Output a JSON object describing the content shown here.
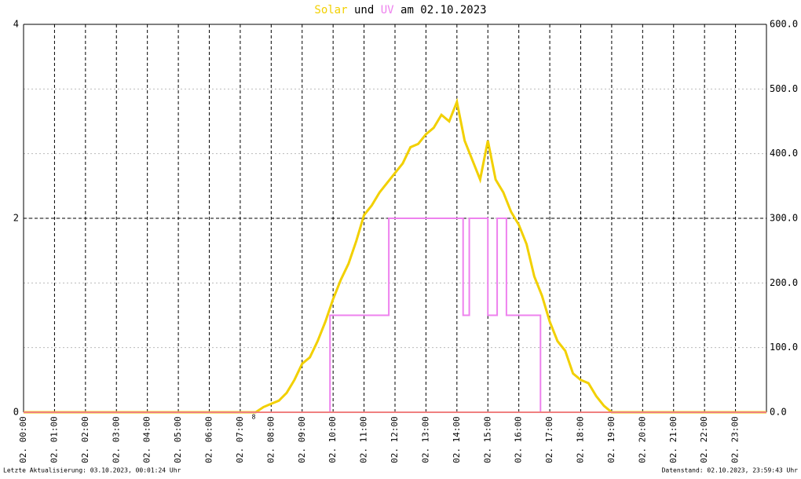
{
  "chart_data": {
    "type": "line",
    "title_words": [
      "und",
      "am 02.10.2023"
    ],
    "footer_left": "Letzte Aktualisierung: 03.10.2023, 00:01:24 Uhr",
    "footer_right": "Datenstand: 02.10.2023, 23:59:43 Uhr",
    "annotation": "8",
    "xlim": [
      0,
      24
    ],
    "xticks": [
      {
        "value": 0,
        "label": "02. 00:00"
      },
      {
        "value": 1,
        "label": "02. 01:00"
      },
      {
        "value": 2,
        "label": "02. 02:00"
      },
      {
        "value": 3,
        "label": "02. 03:00"
      },
      {
        "value": 4,
        "label": "02. 04:00"
      },
      {
        "value": 5,
        "label": "02. 05:00"
      },
      {
        "value": 6,
        "label": "02. 06:00"
      },
      {
        "value": 7,
        "label": "02. 07:00"
      },
      {
        "value": 8,
        "label": "02. 08:00"
      },
      {
        "value": 9,
        "label": "02. 09:00"
      },
      {
        "value": 10,
        "label": "02. 10:00"
      },
      {
        "value": 11,
        "label": "02. 11:00"
      },
      {
        "value": 12,
        "label": "02. 12:00"
      },
      {
        "value": 13,
        "label": "02. 13:00"
      },
      {
        "value": 14,
        "label": "02. 14:00"
      },
      {
        "value": 15,
        "label": "02. 15:00"
      },
      {
        "value": 16,
        "label": "02. 16:00"
      },
      {
        "value": 17,
        "label": "02. 17:00"
      },
      {
        "value": 18,
        "label": "02. 18:00"
      },
      {
        "value": 19,
        "label": "02. 19:00"
      },
      {
        "value": 20,
        "label": "02. 20:00"
      },
      {
        "value": 21,
        "label": "02. 21:00"
      },
      {
        "value": 22,
        "label": "02. 22:00"
      },
      {
        "value": 23,
        "label": "02. 23:00"
      }
    ],
    "ylim": [
      0,
      4
    ],
    "yticks": [
      0,
      2,
      4
    ],
    "y2lim": [
      0,
      600
    ],
    "y2ticks": [
      {
        "value": 0,
        "label": "0.0"
      },
      {
        "value": 100,
        "label": "100.0"
      },
      {
        "value": 200,
        "label": "200.0"
      },
      {
        "value": 300,
        "label": "300.0"
      },
      {
        "value": 400,
        "label": "400.0"
      },
      {
        "value": 500,
        "label": "500.0"
      },
      {
        "value": 600,
        "label": "600.0"
      }
    ],
    "grid": true,
    "series": [
      {
        "name": "Solar",
        "color": "#f2d000",
        "axis": "y2",
        "x": [
          0,
          7.5,
          7.75,
          8,
          8.25,
          8.5,
          8.75,
          9,
          9.25,
          9.5,
          9.75,
          10,
          10.25,
          10.5,
          10.75,
          11,
          11.25,
          11.5,
          11.75,
          12,
          12.25,
          12.5,
          12.75,
          13,
          13.25,
          13.5,
          13.75,
          14,
          14.25,
          14.5,
          14.75,
          15,
          15.25,
          15.5,
          15.75,
          16,
          16.25,
          16.5,
          16.75,
          17,
          17.25,
          17.5,
          17.75,
          18,
          18.25,
          18.5,
          18.75,
          19,
          24
        ],
        "values": [
          0,
          0,
          8,
          13,
          18,
          30,
          50,
          75,
          85,
          110,
          140,
          175,
          205,
          230,
          265,
          305,
          320,
          340,
          355,
          370,
          385,
          410,
          415,
          430,
          440,
          460,
          450,
          480,
          420,
          390,
          360,
          420,
          360,
          340,
          310,
          290,
          260,
          210,
          180,
          140,
          110,
          95,
          60,
          50,
          45,
          25,
          10,
          0,
          0
        ]
      },
      {
        "name": "UV",
        "color": "#ee82ee",
        "x": [
          0,
          9.9,
          9.9,
          11.8,
          11.8,
          14.2,
          14.2,
          14.4,
          14.4,
          15.0,
          15.0,
          15.3,
          15.3,
          15.6,
          15.6,
          16.7,
          16.7,
          24
        ],
        "values": [
          0,
          0,
          1,
          1,
          2,
          2,
          1,
          1,
          2,
          2,
          1,
          1,
          2,
          2,
          1,
          1,
          0,
          0
        ]
      }
    ]
  }
}
